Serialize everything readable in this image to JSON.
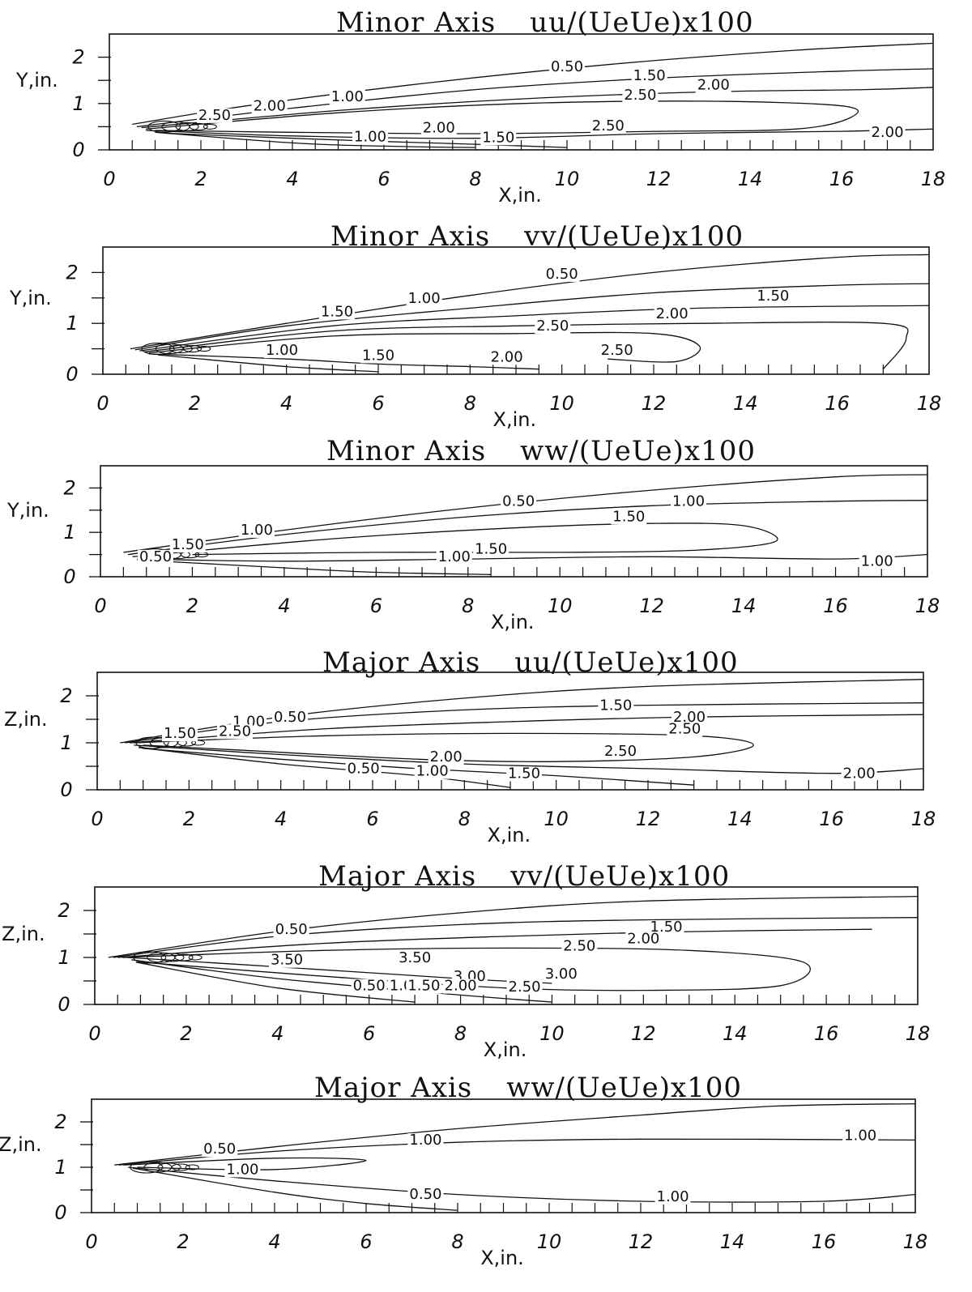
{
  "chart_data": [
    {
      "type": "contour",
      "title": "Minor Axis",
      "quantity": "uu/(UeUe)x100",
      "xlabel": "X,in.",
      "ylabel": "Y,in.",
      "xlim": [
        0,
        18
      ],
      "ylim": [
        0,
        2.5
      ],
      "x_ticks": [
        "0",
        "2",
        "4",
        "6",
        "8",
        "10",
        "12",
        "14",
        "16",
        "18"
      ],
      "y_ticks": [
        "0",
        "1",
        "2"
      ],
      "contour_labels": [
        {
          "text": "0.50",
          "x": 10.0,
          "y": 1.7
        },
        {
          "text": "1.50",
          "x": 11.8,
          "y": 1.5
        },
        {
          "text": "2.00",
          "x": 13.2,
          "y": 1.3
        },
        {
          "text": "2.50",
          "x": 11.6,
          "y": 1.08
        },
        {
          "text": "1.00",
          "x": 5.2,
          "y": 1.05
        },
        {
          "text": "2.00",
          "x": 3.5,
          "y": 0.85
        },
        {
          "text": "2.50",
          "x": 2.3,
          "y": 0.65
        },
        {
          "text": "2.00",
          "x": 7.2,
          "y": 0.38
        },
        {
          "text": "2.50",
          "x": 10.9,
          "y": 0.42
        },
        {
          "text": "1.50",
          "x": 8.5,
          "y": 0.17
        },
        {
          "text": "1.00",
          "x": 5.7,
          "y": 0.18
        },
        {
          "text": "2.00",
          "x": 17.0,
          "y": 0.28
        }
      ]
    },
    {
      "type": "contour",
      "title": "Minor Axis",
      "quantity": "vv/(UeUe)x100",
      "xlabel": "X,in.",
      "ylabel": "Y,in.",
      "xlim": [
        0,
        18
      ],
      "ylim": [
        0,
        2.5
      ],
      "x_ticks": [
        "0",
        "2",
        "4",
        "6",
        "8",
        "10",
        "12",
        "14",
        "16",
        "18"
      ],
      "y_ticks": [
        "0",
        "1",
        "2"
      ],
      "contour_labels": [
        {
          "text": "0.50",
          "x": 10.0,
          "y": 1.88
        },
        {
          "text": "1.00",
          "x": 7.0,
          "y": 1.4
        },
        {
          "text": "1.50",
          "x": 14.6,
          "y": 1.45
        },
        {
          "text": "1.50",
          "x": 5.1,
          "y": 1.14
        },
        {
          "text": "2.00",
          "x": 12.4,
          "y": 1.1
        },
        {
          "text": "2.50",
          "x": 9.8,
          "y": 0.86
        },
        {
          "text": "1.00",
          "x": 3.9,
          "y": 0.38
        },
        {
          "text": "1.50",
          "x": 6.0,
          "y": 0.28
        },
        {
          "text": "2.00",
          "x": 8.8,
          "y": 0.25
        },
        {
          "text": "2.50",
          "x": 11.2,
          "y": 0.38
        }
      ]
    },
    {
      "type": "contour",
      "title": "Minor Axis",
      "quantity": "ww/(UeUe)x100",
      "xlabel": "X,in.",
      "ylabel": "Y,in.",
      "xlim": [
        0,
        18
      ],
      "ylim": [
        0,
        2.5
      ],
      "x_ticks": [
        "0",
        "2",
        "4",
        "6",
        "8",
        "10",
        "12",
        "14",
        "16",
        "18"
      ],
      "y_ticks": [
        "0",
        "1",
        "2"
      ],
      "contour_labels": [
        {
          "text": "0.50",
          "x": 9.1,
          "y": 1.6
        },
        {
          "text": "1.00",
          "x": 12.8,
          "y": 1.6
        },
        {
          "text": "1.50",
          "x": 11.5,
          "y": 1.25
        },
        {
          "text": "1.00",
          "x": 3.4,
          "y": 0.95
        },
        {
          "text": "1.50",
          "x": 1.9,
          "y": 0.62
        },
        {
          "text": "0.50",
          "x": 1.2,
          "y": 0.35
        },
        {
          "text": "1.00",
          "x": 7.7,
          "y": 0.35
        },
        {
          "text": "1.50",
          "x": 8.5,
          "y": 0.52
        },
        {
          "text": "1.00",
          "x": 16.9,
          "y": 0.25
        }
      ]
    },
    {
      "type": "contour",
      "title": "Major Axis",
      "quantity": "uu/(UeUe)x100",
      "xlabel": "X,in.",
      "ylabel": "Z,in.",
      "xlim": [
        0,
        18
      ],
      "ylim": [
        0,
        2.5
      ],
      "x_ticks": [
        "0",
        "2",
        "4",
        "6",
        "8",
        "10",
        "12",
        "14",
        "16",
        "18"
      ],
      "y_ticks": [
        "0",
        "1",
        "2"
      ],
      "contour_labels": [
        {
          "text": "1.50",
          "x": 11.3,
          "y": 1.7
        },
        {
          "text": "2.00",
          "x": 12.9,
          "y": 1.45
        },
        {
          "text": "2.50",
          "x": 12.8,
          "y": 1.2
        },
        {
          "text": "1.00",
          "x": 3.3,
          "y": 1.35
        },
        {
          "text": "0.50",
          "x": 4.2,
          "y": 1.45
        },
        {
          "text": "2.50",
          "x": 3.0,
          "y": 1.15
        },
        {
          "text": "1.50",
          "x": 1.8,
          "y": 1.1
        },
        {
          "text": "2.00",
          "x": 7.6,
          "y": 0.6
        },
        {
          "text": "2.50",
          "x": 11.4,
          "y": 0.72
        },
        {
          "text": "0.50",
          "x": 5.8,
          "y": 0.35
        },
        {
          "text": "1.00",
          "x": 7.3,
          "y": 0.3
        },
        {
          "text": "1.50",
          "x": 9.3,
          "y": 0.25
        },
        {
          "text": "2.00",
          "x": 16.6,
          "y": 0.25
        }
      ]
    },
    {
      "type": "contour",
      "title": "Major Axis",
      "quantity": "vv/(UeUe)x100",
      "xlabel": "X,in.",
      "ylabel": "Z,in.",
      "xlim": [
        0,
        18
      ],
      "ylim": [
        0,
        2.5
      ],
      "x_ticks": [
        "0",
        "2",
        "4",
        "6",
        "8",
        "10",
        "12",
        "14",
        "16",
        "18"
      ],
      "y_ticks": [
        "0",
        "1",
        "2"
      ],
      "contour_labels": [
        {
          "text": "1.50",
          "x": 12.5,
          "y": 1.55
        },
        {
          "text": "2.00",
          "x": 12.0,
          "y": 1.3
        },
        {
          "text": "2.50",
          "x": 10.6,
          "y": 1.15
        },
        {
          "text": "3.50",
          "x": 7.0,
          "y": 0.9
        },
        {
          "text": "3.00",
          "x": 8.2,
          "y": 0.5
        },
        {
          "text": "3.00",
          "x": 10.2,
          "y": 0.55
        },
        {
          "text": "2.50",
          "x": 9.4,
          "y": 0.28
        },
        {
          "text": "2.00",
          "x": 8.0,
          "y": 0.3
        },
        {
          "text": "0.50",
          "x": 6.0,
          "y": 0.3
        },
        {
          "text": "1.00",
          "x": 6.8,
          "y": 0.3
        },
        {
          "text": "1.50",
          "x": 7.2,
          "y": 0.3
        },
        {
          "text": "0.50",
          "x": 4.3,
          "y": 1.5
        },
        {
          "text": "3.50",
          "x": 4.2,
          "y": 0.85
        }
      ]
    },
    {
      "type": "contour",
      "title": "Major Axis",
      "quantity": "ww/(UeUe)x100",
      "xlabel": "X,in.",
      "ylabel": "Z,in.",
      "xlim": [
        0,
        18
      ],
      "ylim": [
        0,
        2.5
      ],
      "x_ticks": [
        "0",
        "2",
        "4",
        "6",
        "8",
        "10",
        "12",
        "14",
        "16",
        "18"
      ],
      "y_ticks": [
        "0",
        "1",
        "2"
      ],
      "contour_labels": [
        {
          "text": "1.00",
          "x": 7.3,
          "y": 1.5
        },
        {
          "text": "1.00",
          "x": 16.8,
          "y": 1.6
        },
        {
          "text": "0.50",
          "x": 2.8,
          "y": 1.3
        },
        {
          "text": "1.00",
          "x": 3.3,
          "y": 0.85
        },
        {
          "text": "0.50",
          "x": 7.3,
          "y": 0.3
        },
        {
          "text": "1.00",
          "x": 12.7,
          "y": 0.25
        }
      ]
    }
  ]
}
